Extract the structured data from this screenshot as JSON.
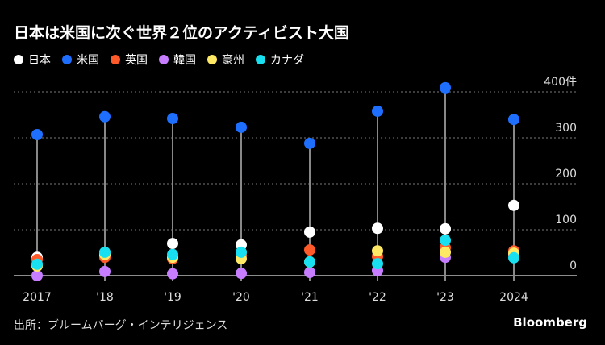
{
  "title": "日本は米国に次ぐ世界２位のアクティビスト大国",
  "source": "出所：ブルームバーグ・インテリジェンス",
  "logo": "Bloomberg",
  "chart_data": {
    "type": "dot",
    "title": "日本は米国に次ぐ世界２位のアクティビスト大国",
    "categories": [
      "2017",
      "'18",
      "'19",
      "'20",
      "'21",
      "'22",
      "'23",
      "2024"
    ],
    "y_ticks": [
      "0",
      "100",
      "200",
      "300",
      "400件"
    ],
    "y_tick_values": [
      0,
      100,
      200,
      300,
      400
    ],
    "ylim": [
      0,
      420
    ],
    "grid": true,
    "legend": "top-left",
    "series": [
      {
        "name": "日本",
        "color": "#ffffff",
        "values": [
          40,
          45,
          70,
          67,
          95,
          103,
          102,
          153
        ]
      },
      {
        "name": "米国",
        "color": "#1f6fff",
        "values": [
          307,
          346,
          342,
          323,
          288,
          358,
          409,
          340
        ]
      },
      {
        "name": "英国",
        "color": "#ff5a2a",
        "values": [
          35,
          40,
          37,
          45,
          56,
          42,
          61,
          54
        ]
      },
      {
        "name": "韓国",
        "color": "#c77dff",
        "values": [
          0,
          9,
          4,
          5,
          7,
          11,
          40,
          46
        ]
      },
      {
        "name": "豪州",
        "color": "#ffe863",
        "values": [
          21,
          46,
          40,
          37,
          30,
          54,
          51,
          49
        ]
      },
      {
        "name": "カナダ",
        "color": "#18e0f0",
        "values": [
          25,
          51,
          46,
          51,
          30,
          26,
          77,
          39
        ]
      }
    ]
  }
}
